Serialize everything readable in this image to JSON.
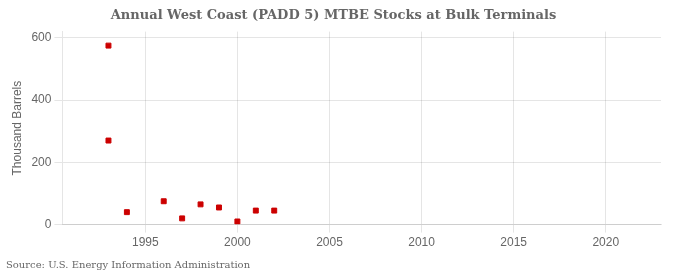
{
  "chart_data": {
    "type": "scatter",
    "title": "Annual West Coast (PADD 5) MTBE Stocks at Bulk Terminals",
    "ylabel": "Thousand Barrels",
    "annotation": "Source: U.S. Energy Information Administration",
    "x": [
      1993,
      1993,
      1994,
      1996,
      1997,
      1998,
      1999,
      2000,
      2001,
      2002
    ],
    "values": [
      575,
      270,
      40,
      75,
      20,
      65,
      55,
      10,
      45,
      45
    ],
    "color": "#cc0000",
    "marker": "square",
    "xlim": [
      1990.5,
      2023
    ],
    "xticks": [
      1995,
      2000,
      2005,
      2010,
      2015,
      2020
    ],
    "ylim": [
      0,
      620
    ],
    "yticks": [
      0,
      200,
      400,
      600
    ],
    "grid": true
  }
}
